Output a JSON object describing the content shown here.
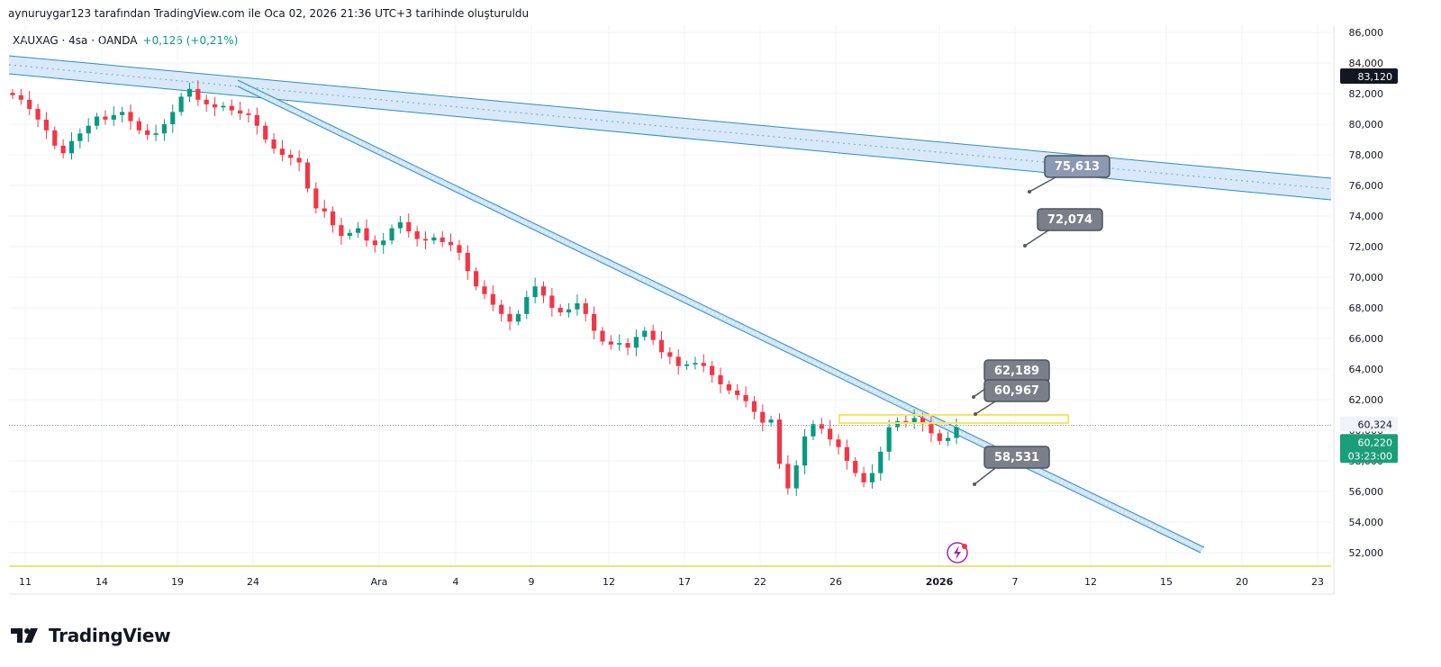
{
  "header": {
    "credit": "aynuruygar123 tarafından TradingView.com ile Oca 02, 2026 21:36 UTC+3 tarihinde oluşturuldu"
  },
  "legend": {
    "symbol": "XAUXAG · 4sa · OANDA",
    "change": "+0,126 (+0,21%)"
  },
  "brand": {
    "name": "TradingView"
  },
  "colors": {
    "up": "#089981",
    "down": "#f23645",
    "channel_line": "#2b8fbf",
    "channel_fill": "#cfe3f7",
    "annotation_bg": "#7b7f8a",
    "highlight_box": "#f5e663",
    "price_badge_dark": "#131722",
    "price_badge_green": "#1a9e7a"
  },
  "chart_data": {
    "type": "candlestick",
    "symbol": "XAUXAG",
    "timeframe": "4sa",
    "source": "OANDA",
    "x_tick_labels": [
      "11",
      "14",
      "19",
      "24",
      "Ara",
      "4",
      "9",
      "12",
      "17",
      "22",
      "26",
      "2026",
      "7",
      "12",
      "15",
      "20",
      "23"
    ],
    "y_tick_labels": [
      "86,000",
      "84,000",
      "82,000",
      "80,000",
      "78,000",
      "76,000",
      "74,000",
      "72,000",
      "70,000",
      "68,000",
      "66,000",
      "64,000",
      "62,000",
      "60,000",
      "58,000",
      "56,000",
      "54,000",
      "52,000"
    ],
    "ylim": [
      51.0,
      87.0
    ],
    "price_path": [
      81.9,
      81.6,
      81.0,
      80.3,
      79.6,
      78.6,
      78.1,
      78.9,
      79.4,
      79.9,
      80.5,
      80.3,
      80.6,
      80.8,
      80.2,
      79.6,
      79.3,
      79.4,
      80.0,
      80.8,
      81.8,
      82.3,
      81.6,
      81.3,
      81.1,
      81.2,
      80.9,
      80.7,
      80.6,
      79.9,
      79.0,
      78.4,
      78.0,
      77.8,
      77.5,
      75.8,
      74.5,
      74.3,
      73.4,
      72.7,
      72.9,
      73.2,
      72.4,
      72.1,
      72.4,
      73.2,
      73.6,
      73.0,
      72.5,
      72.4,
      72.6,
      72.3,
      72.1,
      71.6,
      70.4,
      69.4,
      68.9,
      68.2,
      67.6,
      67.1,
      67.6,
      68.7,
      69.4,
      68.8,
      68.0,
      67.7,
      67.9,
      68.3,
      67.6,
      66.5,
      65.8,
      65.6,
      65.7,
      65.4,
      66.1,
      66.5,
      65.9,
      65.1,
      64.8,
      64.2,
      64.3,
      64.4,
      64.2,
      63.6,
      63.0,
      62.6,
      62.3,
      61.9,
      61.2,
      60.5,
      60.7,
      57.8,
      56.2,
      57.7,
      59.6,
      60.4,
      60.1,
      59.4,
      58.9,
      58.0,
      57.2,
      56.6,
      57.2,
      58.6,
      60.2,
      60.6,
      60.5,
      60.8,
      60.4,
      59.8,
      59.3,
      59.5,
      60.2
    ],
    "annotations": [
      "75,613",
      "72,074",
      "62,189",
      "60,967",
      "58,531"
    ],
    "price_badges": {
      "upper": "83,120",
      "last_close_line": "60,324",
      "current": "60,220",
      "countdown": "03:23:00"
    },
    "grid": true
  }
}
